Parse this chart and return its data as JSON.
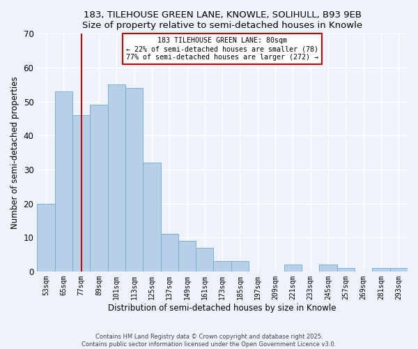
{
  "title1": "183, TILEHOUSE GREEN LANE, KNOWLE, SOLIHULL, B93 9EB",
  "title2": "Size of property relative to semi-detached houses in Knowle",
  "xlabel": "Distribution of semi-detached houses by size in Knowle",
  "ylabel": "Number of semi-detached properties",
  "bar_labels": [
    "53sqm",
    "65sqm",
    "77sqm",
    "89sqm",
    "101sqm",
    "113sqm",
    "125sqm",
    "137sqm",
    "149sqm",
    "161sqm",
    "173sqm",
    "185sqm",
    "197sqm",
    "209sqm",
    "221sqm",
    "233sqm",
    "245sqm",
    "257sqm",
    "269sqm",
    "281sqm",
    "293sqm"
  ],
  "bar_values": [
    20,
    53,
    46,
    49,
    55,
    54,
    32,
    11,
    9,
    7,
    3,
    3,
    0,
    0,
    2,
    0,
    2,
    1,
    0,
    1,
    1
  ],
  "bar_color": "#b8cfe8",
  "bar_edge_color": "#7aafd4",
  "vline_x": 2,
  "vline_color": "#cc0000",
  "annotation_title": "183 TILEHOUSE GREEN LANE: 80sqm",
  "annotation_line1": "← 22% of semi-detached houses are smaller (78)",
  "annotation_line2": "77% of semi-detached houses are larger (272) →",
  "annotation_box_color": "#ffffff",
  "annotation_border_color": "#cc0000",
  "ylim": [
    0,
    70
  ],
  "yticks": [
    0,
    10,
    20,
    30,
    40,
    50,
    60,
    70
  ],
  "footer1": "Contains HM Land Registry data © Crown copyright and database right 2025.",
  "footer2": "Contains public sector information licensed under the Open Government Licence v3.0.",
  "bg_color": "#eef2fb",
  "grid_color": "#ffffff"
}
